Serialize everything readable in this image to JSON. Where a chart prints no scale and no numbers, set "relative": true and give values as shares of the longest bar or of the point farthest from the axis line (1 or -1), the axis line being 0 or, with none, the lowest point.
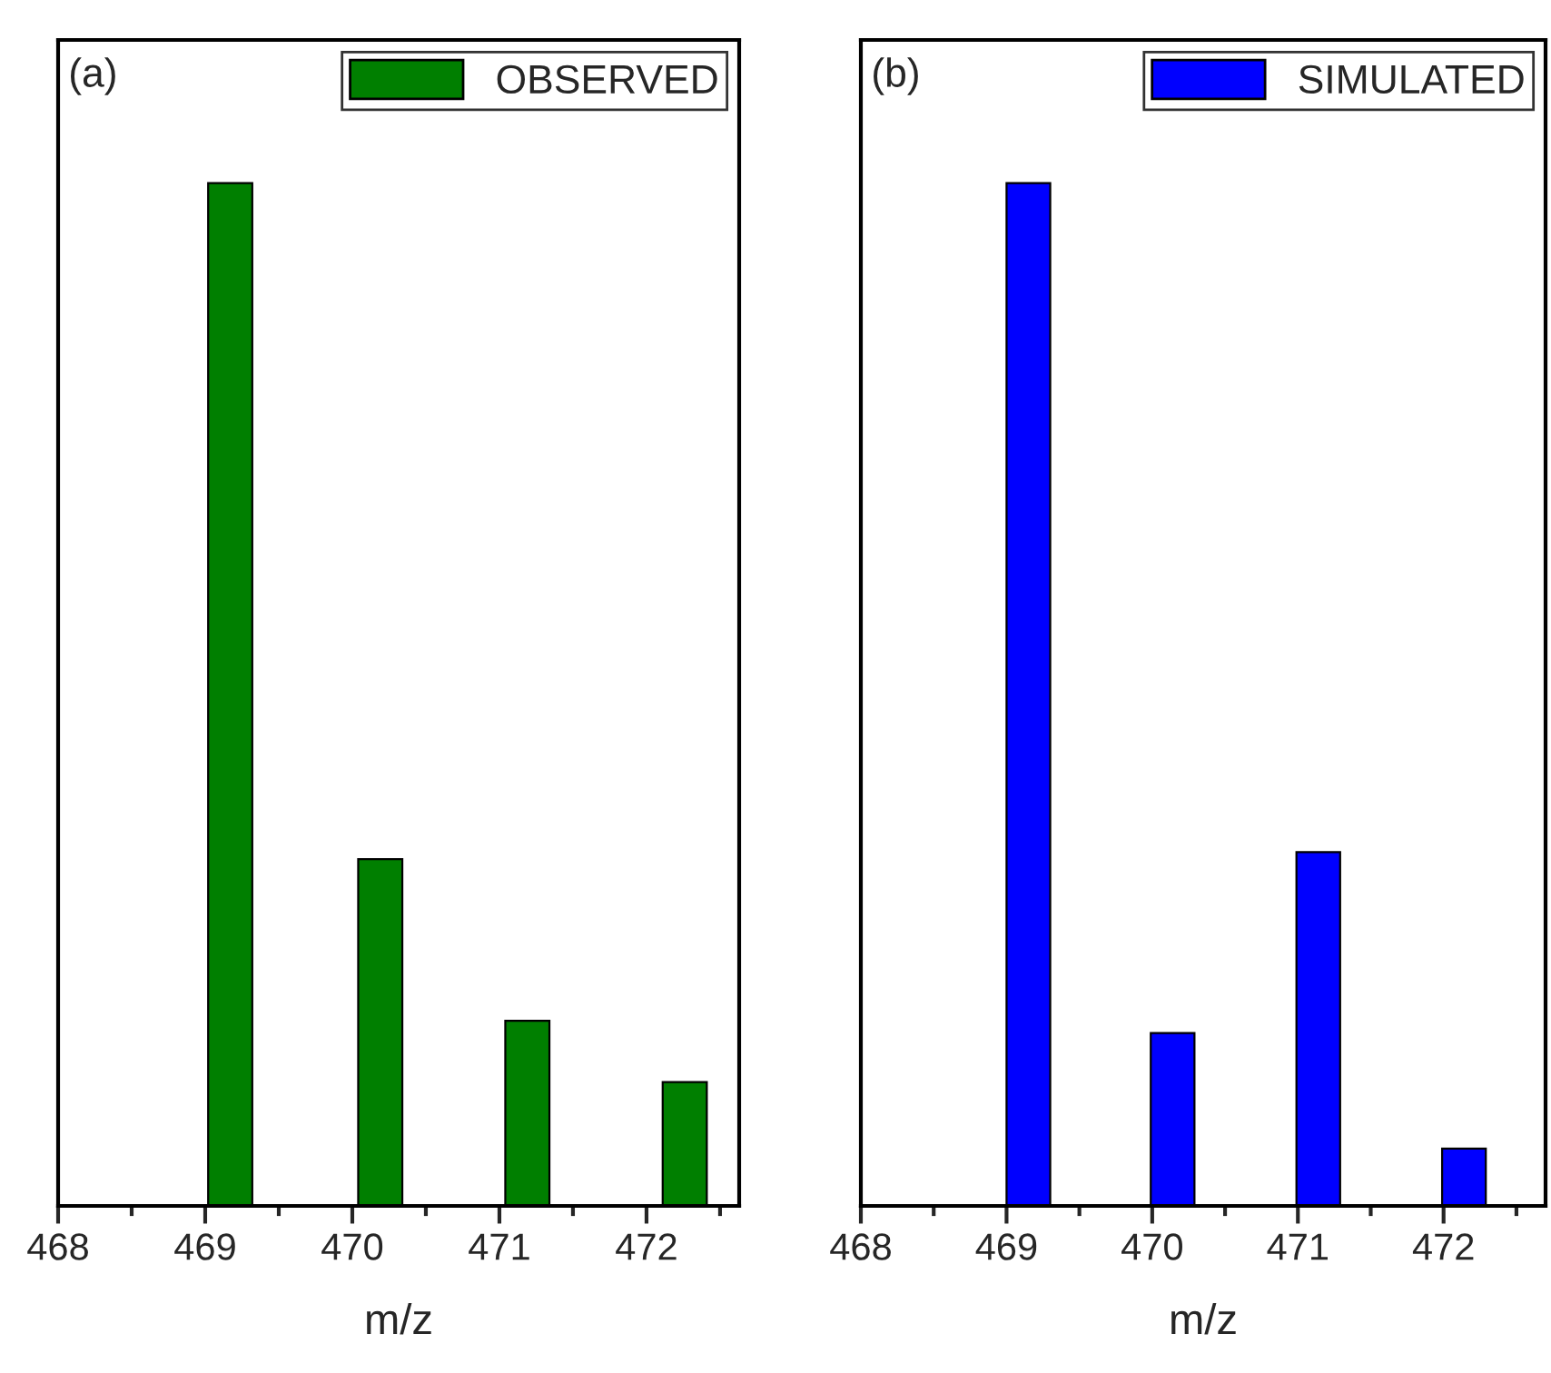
{
  "chart_data": [
    {
      "type": "bar",
      "relative": true,
      "xlabel": "m/z",
      "annotations": [
        "(a)"
      ],
      "legend": "top right",
      "grid": false,
      "x": [
        469.17,
        470.19,
        471.19,
        472.26
      ],
      "series": [
        {
          "name": "OBSERVED",
          "color": "#007f00",
          "values": [
            1,
            0.339,
            0.181,
            0.121
          ]
        }
      ],
      "xlim": [
        468,
        472.63
      ],
      "xticks": [
        468,
        {
          "value": 468.5,
          "label": null
        },
        469,
        {
          "value": 469.5,
          "label": null
        },
        470,
        {
          "value": 470.5,
          "label": null
        },
        471,
        {
          "value": 471.5,
          "label": null
        },
        472,
        {
          "value": 472.5,
          "label": null
        }
      ]
    },
    {
      "type": "bar",
      "relative": true,
      "xlabel": "m/z",
      "annotations": [
        "(b)"
      ],
      "legend": "top right",
      "grid": false,
      "x": [
        469.15,
        470.14,
        471.14,
        472.14
      ],
      "series": [
        {
          "name": "SIMULATED",
          "color": "#0000ff",
          "values": [
            1,
            0.169,
            0.346,
            0.056
          ]
        }
      ],
      "xlim": [
        468,
        472.7
      ],
      "xticks": [
        468,
        {
          "value": 468.5,
          "label": null
        },
        469,
        {
          "value": 469.5,
          "label": null
        },
        470,
        {
          "value": 470.5,
          "label": null
        },
        471,
        {
          "value": 471.5,
          "label": null
        },
        472,
        {
          "value": 472.5,
          "label": null
        }
      ]
    }
  ]
}
